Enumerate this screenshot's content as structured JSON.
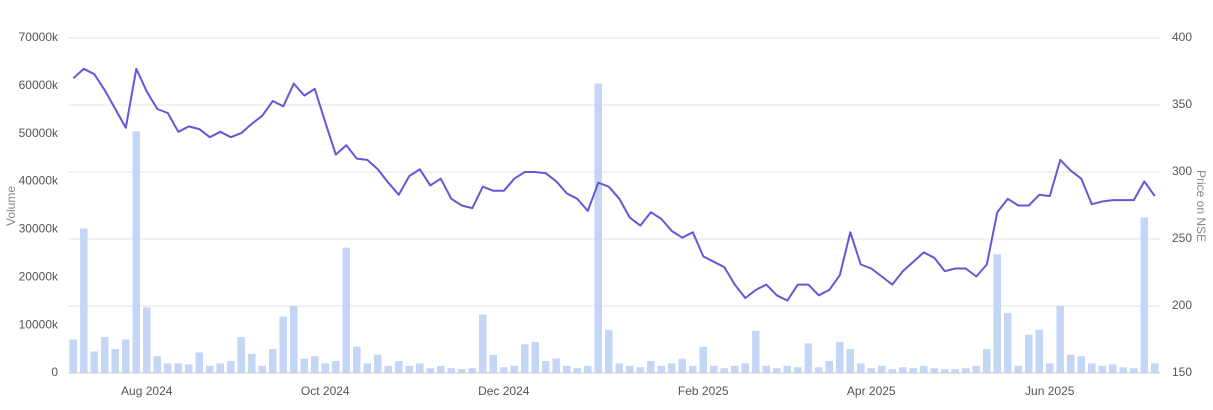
{
  "chart_data": {
    "type": "bar-line",
    "categories": [
      null,
      null,
      null,
      null,
      null,
      null,
      null,
      "Aug 2024",
      null,
      null,
      null,
      null,
      null,
      null,
      null,
      null,
      null,
      null,
      null,
      null,
      null,
      null,
      null,
      null,
      "Oct 2024",
      null,
      null,
      null,
      null,
      null,
      null,
      null,
      null,
      null,
      null,
      null,
      null,
      null,
      null,
      null,
      null,
      "Dec 2024",
      null,
      null,
      null,
      null,
      null,
      null,
      null,
      null,
      null,
      null,
      null,
      null,
      null,
      null,
      null,
      null,
      null,
      null,
      "Feb 2025",
      null,
      null,
      null,
      null,
      null,
      null,
      null,
      null,
      null,
      null,
      null,
      null,
      null,
      null,
      null,
      "Apr 2025",
      null,
      null,
      null,
      null,
      null,
      null,
      null,
      null,
      null,
      null,
      null,
      null,
      null,
      null,
      null,
      null,
      "Jun 2025",
      null,
      null,
      null,
      null,
      null,
      null,
      null,
      null,
      null,
      null
    ],
    "series": [
      {
        "name": "Volume",
        "type": "bar",
        "axis": "y",
        "color": "#c3d6f6",
        "values": [
          7000,
          30200,
          4500,
          7500,
          5000,
          7000,
          50500,
          13700,
          3500,
          2000,
          2000,
          1800,
          4300,
          1500,
          2000,
          2500,
          7500,
          4000,
          1500,
          5000,
          11800,
          14000,
          3000,
          3500,
          2000,
          2500,
          26200,
          5500,
          2000,
          3800,
          1500,
          2500,
          1500,
          2000,
          1000,
          1500,
          1000,
          800,
          1000,
          12200,
          3800,
          1200,
          1500,
          6000,
          6500,
          2500,
          3000,
          1500,
          1000,
          1500,
          60500,
          9000,
          2000,
          1500,
          1200,
          2500,
          1500,
          2000,
          3000,
          1500,
          5500,
          1500,
          1000,
          1500,
          2000,
          8800,
          1500,
          1000,
          1500,
          1200,
          6200,
          1200,
          2500,
          6500,
          5000,
          2000,
          1000,
          1500,
          800,
          1200,
          1000,
          1500,
          1000,
          800,
          800,
          1000,
          1500,
          5000,
          24800,
          12500,
          1500,
          8000,
          9000,
          2000,
          14000,
          3800,
          3500,
          2000,
          1500,
          1800,
          1200,
          1000,
          32500,
          2000
        ]
      },
      {
        "name": "Price on NSE",
        "type": "line",
        "axis": "y2",
        "color": "#6657d8",
        "values": [
          370,
          377,
          373,
          361,
          347,
          333,
          377,
          360,
          347,
          344,
          330,
          334,
          332,
          326,
          330,
          326,
          329,
          336,
          342,
          353,
          349,
          366,
          357,
          362,
          337,
          313,
          320,
          310,
          309,
          302,
          292,
          283,
          297,
          302,
          290,
          295,
          280,
          275,
          273,
          289,
          286,
          286,
          295,
          300,
          300,
          299,
          293,
          284,
          280,
          271,
          292,
          289,
          280,
          266,
          260,
          270,
          265,
          256,
          251,
          255,
          237,
          233,
          229,
          216,
          206,
          212,
          216,
          208,
          204,
          216,
          216,
          208,
          212,
          223,
          255,
          231,
          228,
          222,
          216,
          226,
          233,
          240,
          236,
          226,
          228,
          228,
          222,
          231,
          270,
          280,
          275,
          275,
          283,
          282,
          309,
          301,
          295,
          276,
          278,
          279,
          279,
          279,
          293,
          282
        ]
      }
    ],
    "ylabel": "Volume",
    "y2label": "Price on NSE",
    "ylim": [
      0,
      70000
    ],
    "yticks": [
      0,
      {
        "value": 10000,
        "label": "10000k"
      },
      {
        "value": 20000,
        "label": "20000k"
      },
      {
        "value": 30000,
        "label": "30000k"
      },
      {
        "value": 40000,
        "label": "40000k"
      },
      {
        "value": 50000,
        "label": "50000k"
      },
      {
        "value": 60000,
        "label": "60000k"
      },
      {
        "value": 70000,
        "label": "70000k"
      }
    ],
    "y2lim": [
      150,
      400
    ],
    "y2ticks": [
      150,
      200,
      250,
      300,
      350,
      400
    ],
    "grid": "y2"
  }
}
